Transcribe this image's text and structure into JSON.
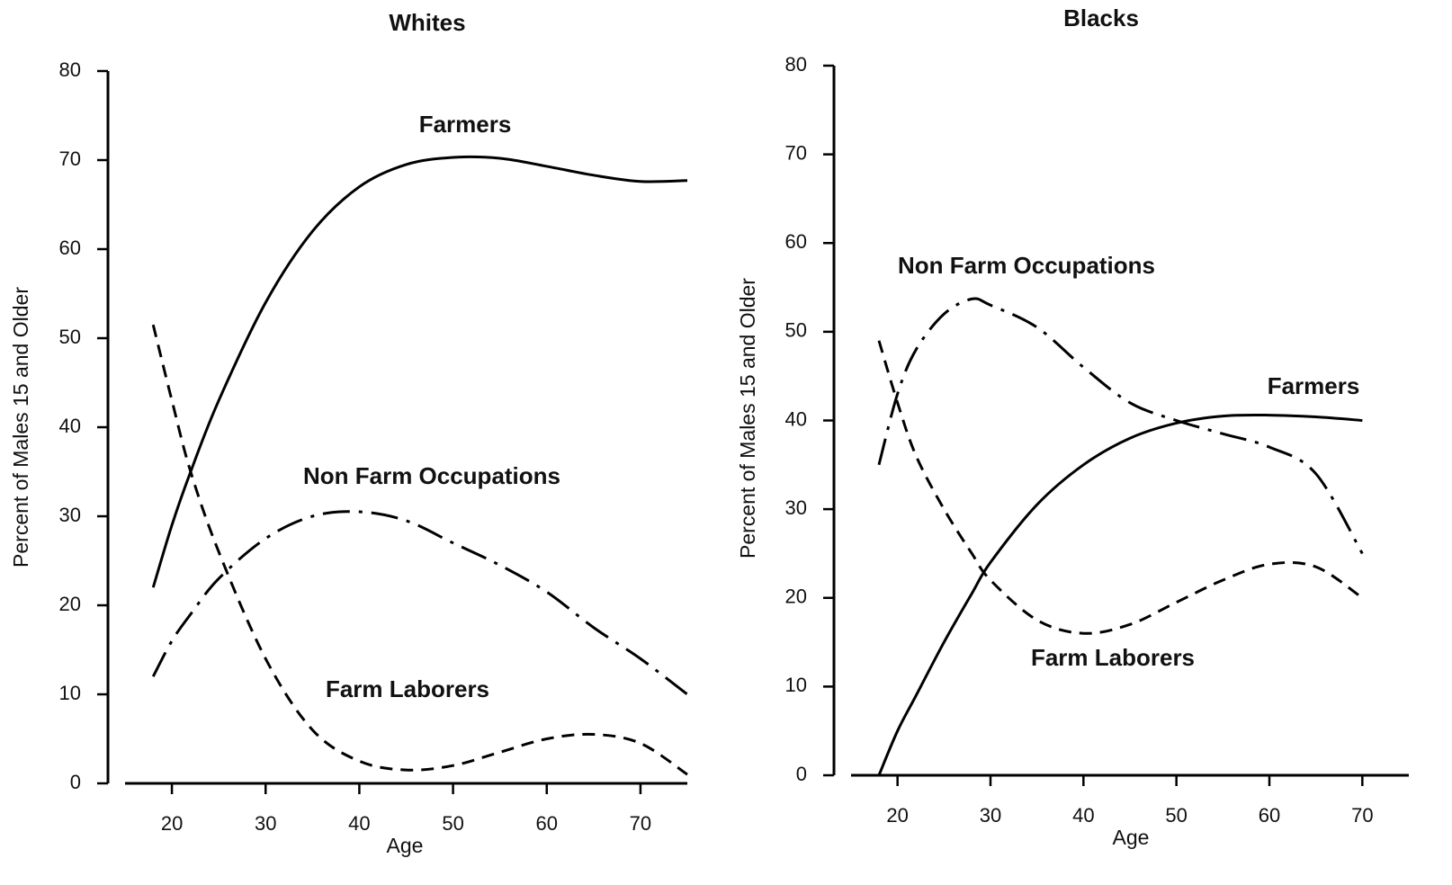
{
  "chart_data": [
    {
      "type": "line",
      "title": "Whites",
      "x_label": "Age",
      "y_label": "Percent of Males 15 and Older",
      "x": [
        18,
        20,
        22,
        25,
        30,
        35,
        40,
        45,
        50,
        55,
        60,
        65,
        70,
        75
      ],
      "xlim": [
        15,
        75
      ],
      "xticks": [
        20,
        30,
        40,
        50,
        60,
        70
      ],
      "ylim": [
        0,
        80
      ],
      "yticks": [
        0,
        10,
        20,
        30,
        40,
        50,
        60,
        70,
        80
      ],
      "series": [
        {
          "name": "Farmers",
          "color": "#000000",
          "style": "solid",
          "values": [
            22,
            29,
            35,
            43,
            54,
            62,
            67,
            69.5,
            70.3,
            70.2,
            69.3,
            68.3,
            67.6,
            67.7
          ]
        },
        {
          "name": "Non Farm Occupations",
          "color": "#000000",
          "style": "dashdot",
          "values": [
            12,
            16,
            19,
            23,
            27.5,
            30,
            30.5,
            29.5,
            27,
            24.5,
            21.5,
            17.5,
            14,
            10
          ]
        },
        {
          "name": "Farm Laborers",
          "color": "#000000",
          "style": "dashed",
          "values": [
            51.5,
            43,
            35,
            26,
            14,
            6,
            2.5,
            1.5,
            2,
            3.5,
            5,
            5.5,
            4.5,
            1
          ]
        }
      ]
    },
    {
      "type": "line",
      "title": "Blacks",
      "x_label": "Age",
      "y_label": "Percent of Males 15 and Older",
      "x": [
        18,
        20,
        22,
        25,
        28,
        30,
        35,
        40,
        45,
        50,
        55,
        60,
        65,
        70
      ],
      "xlim": [
        15,
        75
      ],
      "xticks": [
        20,
        30,
        40,
        50,
        60,
        70
      ],
      "ylim": [
        0,
        80
      ],
      "yticks": [
        0,
        10,
        20,
        30,
        40,
        50,
        60,
        70,
        80
      ],
      "series": [
        {
          "name": "Farmers",
          "color": "#000000",
          "style": "solid",
          "values": [
            0,
            5,
            9,
            15,
            20.5,
            24,
            30.5,
            35,
            38,
            39.7,
            40.5,
            40.6,
            40.4,
            40
          ]
        },
        {
          "name": "Non Farm Occupations",
          "color": "#000000",
          "style": "dashdot",
          "values": [
            35,
            43,
            48,
            52,
            53.7,
            53,
            50.5,
            46,
            42,
            40,
            38.5,
            37,
            34,
            25
          ]
        },
        {
          "name": "Farm Laborers",
          "color": "#000000",
          "style": "dashed",
          "values": [
            49,
            42,
            36,
            30,
            25,
            22,
            17.5,
            16,
            17,
            19.5,
            22,
            23.8,
            23.5,
            20
          ]
        }
      ]
    }
  ]
}
